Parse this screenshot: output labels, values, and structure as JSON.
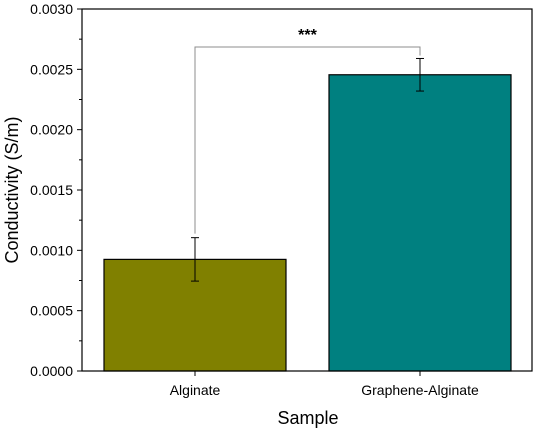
{
  "chart_data": {
    "type": "bar",
    "categories": [
      "Alginate",
      "Graphene-Alginate"
    ],
    "values": [
      0.000925,
      0.002455
    ],
    "errors": [
      0.00018,
      0.000135
    ],
    "colors": [
      "#808000",
      "#008080"
    ],
    "xlabel": "Sample",
    "ylabel": "Conductivity (S/m)",
    "ylim": [
      0,
      0.003
    ],
    "yticks": [
      "0.0000",
      "0.0005",
      "0.0010",
      "0.0015",
      "0.0020",
      "0.0025",
      "0.0030"
    ],
    "significance": {
      "label": "***",
      "between": [
        "Alginate",
        "Graphene-Alginate"
      ]
    },
    "grid": false,
    "legend": "none"
  }
}
